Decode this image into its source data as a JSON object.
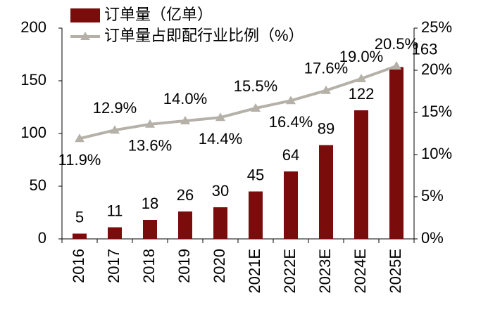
{
  "chart_data": {
    "type": "bar-line",
    "categories": [
      "2016",
      "2017",
      "2018",
      "2019",
      "2020",
      "2021E",
      "2022E",
      "2023E",
      "2024E",
      "2025E"
    ],
    "series": [
      {
        "name": "订单量（亿单）",
        "color": "#7a0c0c",
        "type": "bar",
        "values": [
          5,
          11,
          18,
          26,
          30,
          45,
          64,
          89,
          122,
          163
        ]
      },
      {
        "name": "订单量占即配行业比例（%）",
        "color": "#b5b1a8",
        "type": "line",
        "axis": "y2",
        "values": [
          11.9,
          12.9,
          13.6,
          14.0,
          14.4,
          15.5,
          16.4,
          17.6,
          19.0,
          20.5
        ],
        "value_labels": [
          "11.9%",
          "12.9%",
          "13.6%",
          "14.0%",
          "14.4%",
          "15.5%",
          "16.4%",
          "17.6%",
          "19.0%",
          "20.5%"
        ]
      }
    ],
    "ylim": [
      0,
      200
    ],
    "yticks": [
      0,
      50,
      100,
      150,
      200
    ],
    "y2lim": [
      0,
      25
    ],
    "y2ticks": [
      {
        "value": 0,
        "label": "0%"
      },
      {
        "value": 5,
        "label": "5%"
      },
      {
        "value": 10,
        "label": "10%"
      },
      {
        "value": 15,
        "label": "15%"
      },
      {
        "value": 20,
        "label": "20%"
      },
      {
        "value": 25,
        "label": "25%"
      }
    ],
    "grid": false
  }
}
